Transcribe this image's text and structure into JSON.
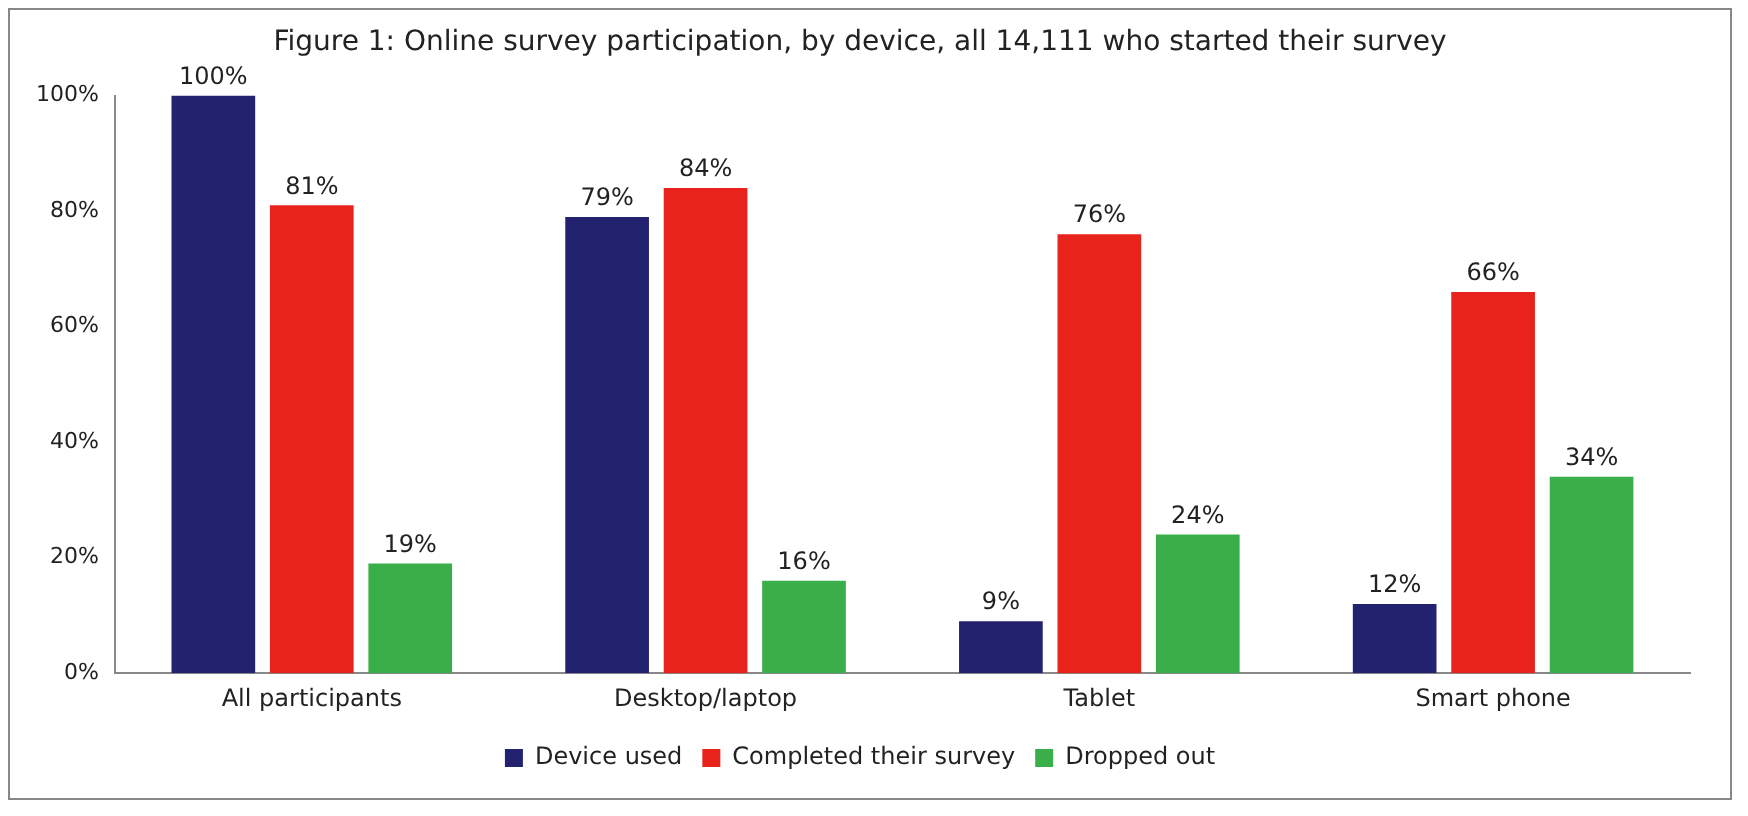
{
  "chart_data": {
    "type": "bar",
    "title": "Figure 1: Online survey participation, by device, all 14,111 who started their survey",
    "categories": [
      "All participants",
      "Desktop/laptop",
      "Tablet",
      "Smart phone"
    ],
    "series": [
      {
        "name": "Device used",
        "color": "#22226e",
        "values": [
          100,
          79,
          9,
          12
        ],
        "value_labels": [
          "100%",
          "79%",
          "9%",
          "12%"
        ]
      },
      {
        "name": "Completed their survey",
        "color": "#e8231c",
        "values": [
          81,
          84,
          76,
          66
        ],
        "value_labels": [
          "81%",
          "84%",
          "76%",
          "66%"
        ]
      },
      {
        "name": "Dropped out",
        "color": "#3aae49",
        "values": [
          19,
          16,
          24,
          34
        ],
        "value_labels": [
          "19%",
          "16%",
          "24%",
          "34%"
        ]
      }
    ],
    "ylim": [
      0,
      100
    ],
    "yticks": [
      {
        "value": 0,
        "label": "0%"
      },
      {
        "value": 20,
        "label": "20%"
      },
      {
        "value": 40,
        "label": "40%"
      },
      {
        "value": 60,
        "label": "60%"
      },
      {
        "value": 80,
        "label": "80%"
      },
      {
        "value": 100,
        "label": "100%"
      }
    ],
    "grid": false,
    "legend": "bottom"
  }
}
